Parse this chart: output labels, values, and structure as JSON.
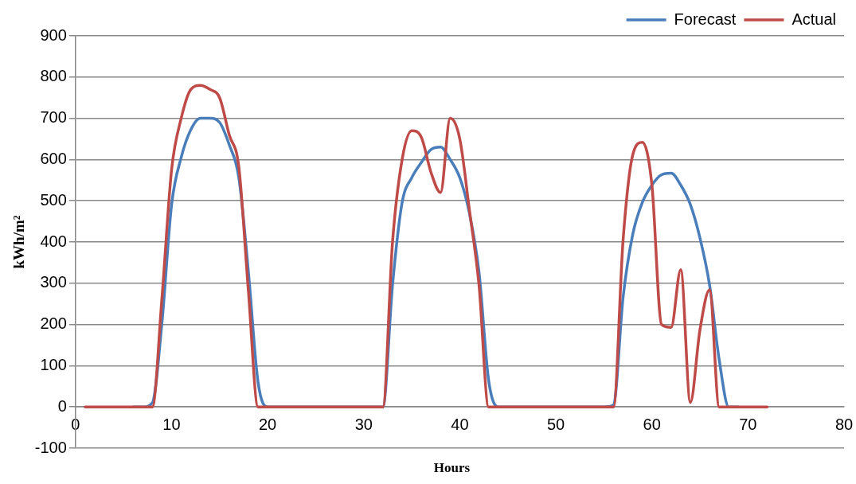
{
  "chart_data": {
    "type": "line",
    "xlabel": "Hours",
    "ylabel": "kWh/m²",
    "x": [
      1,
      2,
      3,
      4,
      5,
      6,
      7,
      8,
      9,
      10,
      11,
      12,
      13,
      14,
      15,
      16,
      17,
      18,
      19,
      20,
      21,
      22,
      23,
      24,
      25,
      26,
      27,
      28,
      29,
      30,
      31,
      32,
      33,
      34,
      35,
      36,
      37,
      38,
      39,
      40,
      41,
      42,
      43,
      44,
      45,
      46,
      47,
      48,
      49,
      50,
      51,
      52,
      53,
      54,
      55,
      56,
      57,
      58,
      59,
      60,
      61,
      62,
      63,
      64,
      65,
      66,
      67,
      68,
      69,
      70,
      71,
      72
    ],
    "series": [
      {
        "name": "Forecast",
        "color": "#4a7ebb",
        "values": [
          null,
          null,
          null,
          null,
          null,
          0,
          0,
          10,
          205,
          490,
          605,
          672,
          700,
          700,
          690,
          636,
          556,
          327,
          60,
          0,
          0,
          0,
          0,
          0,
          0,
          0,
          0,
          0,
          0,
          0,
          0,
          0,
          296,
          496,
          556,
          593,
          624,
          630,
          600,
          556,
          470,
          327,
          65,
          0,
          0,
          0,
          0,
          0,
          0,
          0,
          0,
          0,
          0,
          0,
          0,
          5,
          266,
          418,
          496,
          538,
          563,
          567,
          538,
          491,
          410,
          296,
          115,
          0,
          0,
          null,
          null,
          null
        ]
      },
      {
        "name": "Actual",
        "color": "#be4b48",
        "values": [
          0,
          0,
          0,
          0,
          0,
          0,
          0,
          0,
          265,
          575,
          700,
          770,
          780,
          770,
          750,
          660,
          582,
          280,
          0,
          0,
          0,
          0,
          0,
          0,
          0,
          0,
          0,
          0,
          0,
          0,
          0,
          0,
          400,
          600,
          670,
          654,
          569,
          520,
          700,
          650,
          478,
          296,
          0,
          0,
          0,
          0,
          0,
          0,
          0,
          0,
          0,
          0,
          0,
          0,
          0,
          0,
          405,
          611,
          642,
          538,
          200,
          193,
          333,
          11,
          187,
          284,
          0,
          0,
          0,
          0,
          0,
          0
        ]
      }
    ],
    "xlim": [
      0,
      80
    ],
    "xticks": [
      0,
      10,
      20,
      30,
      40,
      50,
      60,
      70,
      80
    ],
    "ylim": [
      -100,
      900
    ],
    "yticks": [
      -100,
      0,
      100,
      200,
      300,
      400,
      500,
      600,
      700,
      800,
      900
    ],
    "grid": "y",
    "legend": "top right",
    "marker": "none",
    "line_style": "solid"
  }
}
